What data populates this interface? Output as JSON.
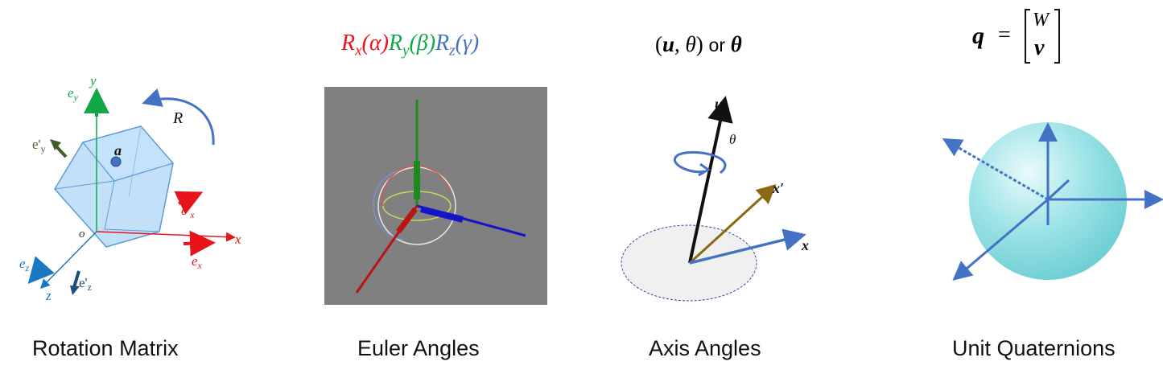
{
  "panels": [
    {
      "label": "Rotation Matrix"
    },
    {
      "label": "Euler Angles"
    },
    {
      "label": "Axis Angles"
    },
    {
      "label": "Unit Quaternions"
    }
  ],
  "rotation_matrix": {
    "labels": {
      "x": "x",
      "y": "y",
      "z": "z",
      "o": "o",
      "a": "a",
      "R": "R",
      "ex": "e",
      "ex_sub": "x",
      "ey": "e",
      "ey_sub": "y",
      "ez": "e",
      "ez_sub": "z",
      "ex_prime": "e'",
      "ex_prime_sub": "x",
      "ey_prime": "e'",
      "ey_prime_sub": "y",
      "ez_prime": "e'",
      "ez_prime_sub": "z"
    }
  },
  "euler_angles": {
    "formula": {
      "rx": "R",
      "rx_sub": "x",
      "alpha": "(α)",
      "ry": "R",
      "ry_sub": "y",
      "beta": "(β)",
      "rz": "R",
      "rz_sub": "z",
      "gamma": "(γ)"
    }
  },
  "axis_angles": {
    "formula": {
      "u": "u",
      "theta": "θ",
      "or": "or",
      "theta_bold": "θ"
    },
    "labels": {
      "u": "u",
      "theta": "θ",
      "x_prime": "x′",
      "x": "x"
    }
  },
  "quaternions": {
    "formula": {
      "q": "q",
      "eq": "=",
      "w": "W",
      "v": "v"
    }
  },
  "colors": {
    "red": "#e8141b",
    "green": "#12a84a",
    "blue_axis": "#1a78c2",
    "diagram_blue": "#4472c4",
    "dark_green": "#3e5f2a",
    "dark_blue": "#1f4e79",
    "brown": "#8b6914",
    "gray_bg": "#808080",
    "sphere": "#7fd6db"
  }
}
